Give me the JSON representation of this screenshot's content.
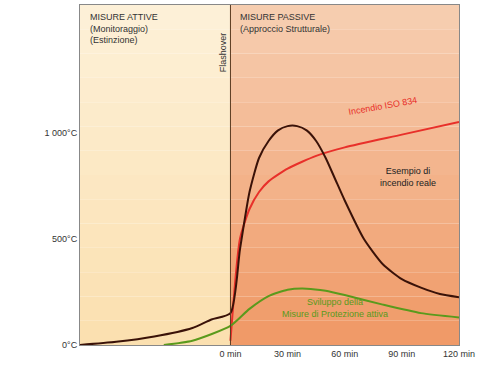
{
  "chart_data": {
    "type": "line",
    "xlim": [
      -79,
      120
    ],
    "xticks": [
      {
        "value": 0,
        "label": "0 min"
      },
      {
        "value": 30,
        "label": "30 min"
      },
      {
        "value": 60,
        "label": "60 min"
      },
      {
        "value": 90,
        "label": "90 min"
      },
      {
        "value": 120,
        "label": "120 min"
      }
    ],
    "ylim": [
      0,
      1600
    ],
    "yticks": [
      {
        "value": 0,
        "label": "0°C"
      },
      {
        "value": 500,
        "label": "500°C"
      },
      {
        "value": 1000,
        "label": "1 000°C"
      }
    ],
    "grid": false,
    "regions": [
      {
        "label": "MISURE ATTIVE\n(Monitoraggio)\n(Estinzione)",
        "color": "#fbe0b0"
      },
      {
        "label": "MISURE PASSIVE\n(Approccio Strutturale)",
        "color": "#f09a68"
      }
    ],
    "vline": {
      "x": 0,
      "label": "Flashover"
    },
    "series": [
      {
        "name": "Incendio ISO 834",
        "color": "#e8302a",
        "x": [
          0,
          5,
          10,
          15,
          20,
          30,
          45,
          60,
          90,
          120
        ],
        "values": [
          20,
          500,
          640,
          720,
          770,
          830,
          890,
          930,
          990,
          1050
        ]
      },
      {
        "name": "Esempio di\nincendio reale",
        "color": "#3a1208",
        "x": [
          -79,
          -60,
          -40,
          -20,
          -10,
          0,
          5,
          10,
          15,
          20,
          25,
          30,
          35,
          40,
          45,
          50,
          55,
          60,
          70,
          80,
          90,
          100,
          110,
          120
        ],
        "values": [
          0,
          15,
          40,
          80,
          120,
          150,
          450,
          720,
          880,
          960,
          1010,
          1030,
          1030,
          1010,
          960,
          880,
          780,
          680,
          500,
          380,
          310,
          270,
          240,
          225
        ]
      },
      {
        "name": "Sviluppo della\nMisure di Protezione attiva",
        "color": "#5a9a1c",
        "x": [
          -35,
          -20,
          0,
          10,
          20,
          30,
          40,
          50,
          60,
          80,
          100,
          120
        ],
        "values": [
          0,
          20,
          90,
          170,
          230,
          260,
          265,
          255,
          235,
          190,
          150,
          130
        ]
      }
    ]
  }
}
